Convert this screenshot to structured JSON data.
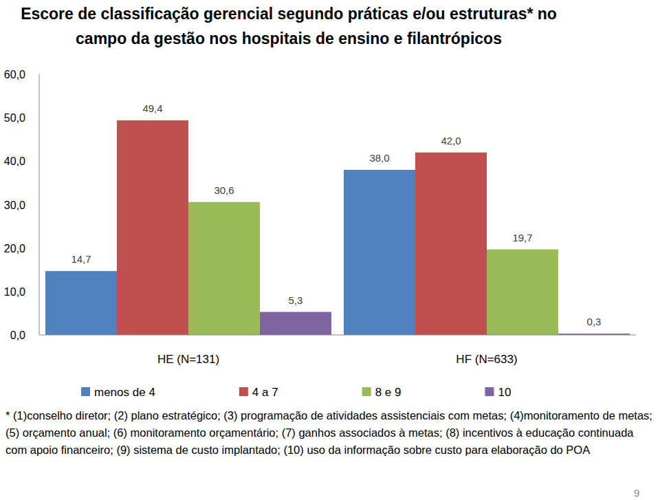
{
  "chart_data": {
    "type": "bar",
    "title": "Escore de classificação gerencial segundo práticas e/ou estruturas* no campo da gestão nos hospitais de ensino e filantrópicos",
    "footnote": "* (1)conselho diretor; (2) plano estratégico; (3) programação de atividades assistenciais com metas; (4)monitoramento de metas; (5) orçamento anual; (6) monitoramento orçamentário; (7) ganhos associados à metas; (8) incentivos à educação continuada com apoio financeiro; (9) sistema de custo implantado; (10) uso da informação sobre custo para elaboração do POA",
    "page_number": "9",
    "categories": [
      "HE (N=131)",
      "HF (N=633)"
    ],
    "series": [
      {
        "name": "menos de 4",
        "color": "#4f81bd",
        "values": [
          14.7,
          38.0
        ],
        "value_labels": [
          "14,7",
          "38,0"
        ]
      },
      {
        "name": "4 a 7",
        "color": "#c0504d",
        "values": [
          49.4,
          42.0
        ],
        "value_labels": [
          "49,4",
          "42,0"
        ]
      },
      {
        "name": "8 e 9",
        "color": "#9bbb59",
        "values": [
          30.6,
          19.7
        ],
        "value_labels": [
          "30,6",
          "19,7"
        ]
      },
      {
        "name": "10",
        "color": "#8064a2",
        "values": [
          5.3,
          0.3
        ],
        "value_labels": [
          "5,3",
          "0,3"
        ]
      }
    ],
    "ylim": [
      0,
      60
    ],
    "yticks": [
      {
        "value": 0,
        "label": "0,0"
      },
      {
        "value": 10,
        "label": "10,0"
      },
      {
        "value": 20,
        "label": "20,0"
      },
      {
        "value": 30,
        "label": "30,0"
      },
      {
        "value": 40,
        "label": "40,0"
      },
      {
        "value": 50,
        "label": "50,0"
      },
      {
        "value": 60,
        "label": "60,0"
      }
    ],
    "grid": false,
    "legend": "bottom",
    "data_labels": true
  }
}
